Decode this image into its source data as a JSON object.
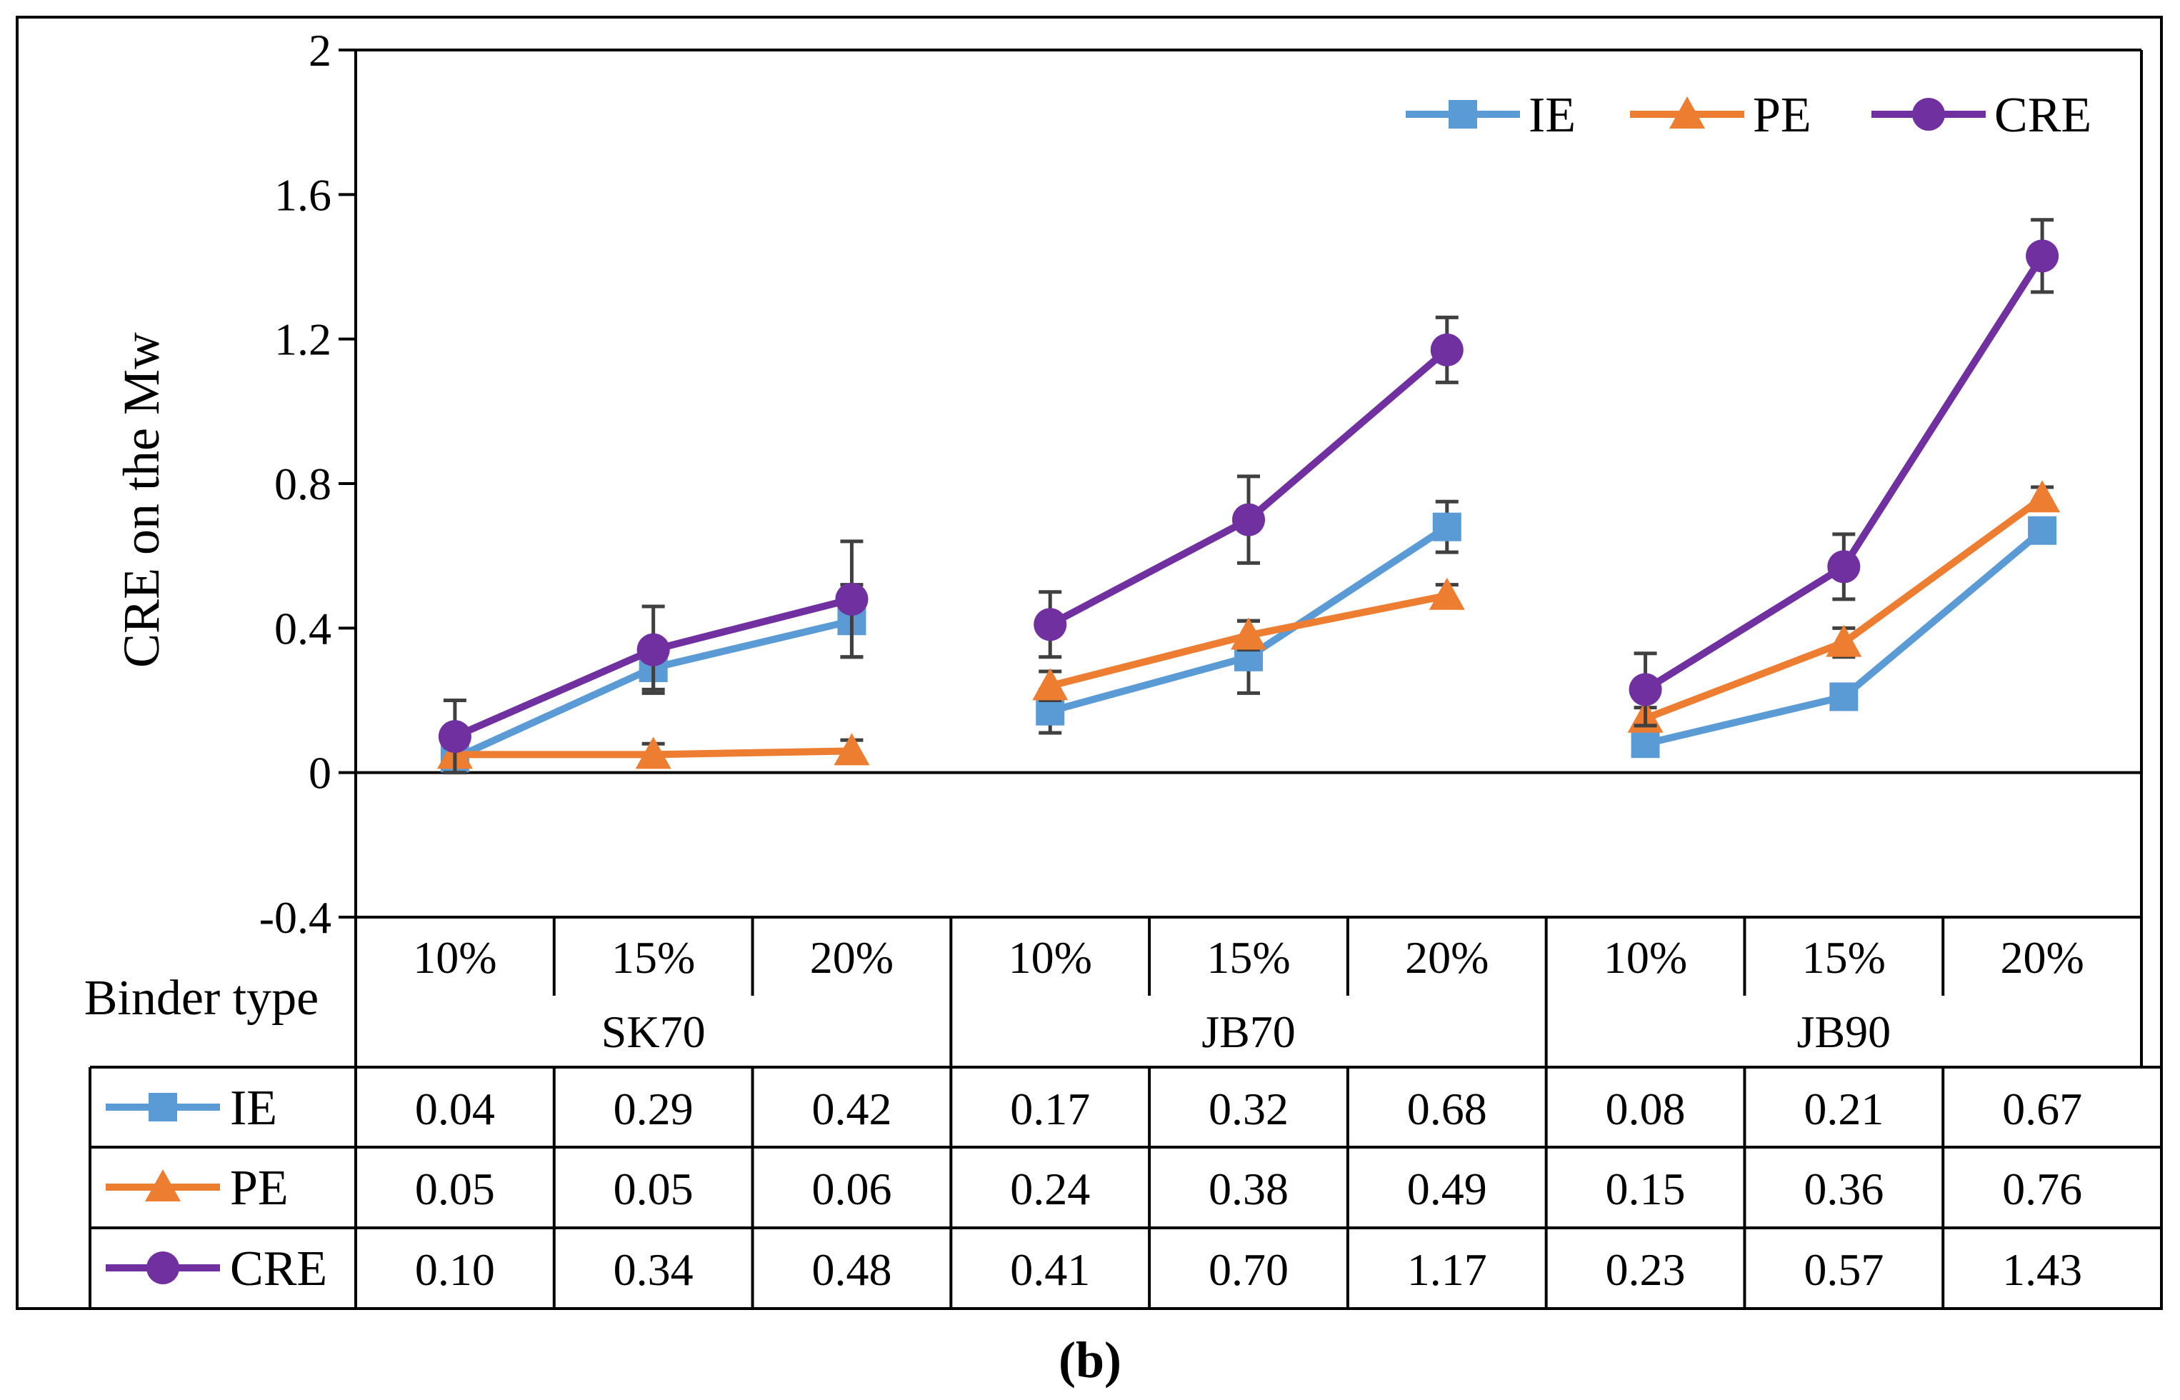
{
  "chart_data": {
    "type": "line",
    "ylabel": "CRE on the Mw",
    "ylim": [
      -0.4,
      2
    ],
    "yticks": [
      "-0.4",
      "0",
      "0.4",
      "0.8",
      "1.2",
      "1.6",
      "2"
    ],
    "ytick_values": [
      -0.4,
      0,
      0.4,
      0.8,
      1.2,
      1.6,
      2
    ],
    "table_header_label": "Binder type",
    "groups": [
      {
        "name": "SK70",
        "categories": [
          "10%",
          "15%",
          "20%"
        ]
      },
      {
        "name": "JB70",
        "categories": [
          "10%",
          "15%",
          "20%"
        ]
      },
      {
        "name": "JB90",
        "categories": [
          "10%",
          "15%",
          "20%"
        ]
      }
    ],
    "series": [
      {
        "name": "IE",
        "color": "#5B9BD5",
        "marker": "square",
        "values": [
          0.04,
          0.29,
          0.42,
          0.17,
          0.32,
          0.68,
          0.08,
          0.21,
          0.67
        ],
        "labels": [
          "0.04",
          "0.29",
          "0.42",
          "0.17",
          "0.32",
          "0.68",
          "0.08",
          "0.21",
          "0.67"
        ],
        "errors": [
          0.02,
          0.06,
          0.1,
          0.06,
          0.1,
          0.07,
          0.02,
          0.02,
          0.02
        ]
      },
      {
        "name": "PE",
        "color": "#ED7D31",
        "marker": "triangle",
        "values": [
          0.05,
          0.05,
          0.06,
          0.24,
          0.38,
          0.49,
          0.15,
          0.36,
          0.76
        ],
        "labels": [
          "0.05",
          "0.05",
          "0.06",
          "0.24",
          "0.38",
          "0.49",
          "0.15",
          "0.36",
          "0.76"
        ],
        "errors": [
          0.02,
          0.03,
          0.03,
          0.04,
          0.04,
          0.03,
          0.03,
          0.04,
          0.03
        ]
      },
      {
        "name": "CRE",
        "color": "#7030A0",
        "marker": "circle",
        "values": [
          0.1,
          0.34,
          0.48,
          0.41,
          0.7,
          1.17,
          0.23,
          0.57,
          1.43
        ],
        "labels": [
          "0.10",
          "0.34",
          "0.48",
          "0.41",
          "0.70",
          "1.17",
          "0.23",
          "0.57",
          "1.43"
        ],
        "errors": [
          0.1,
          0.12,
          0.16,
          0.09,
          0.12,
          0.09,
          0.1,
          0.09,
          0.1
        ]
      }
    ],
    "legend": "top-right",
    "caption": "(b)",
    "errorbar_color": "#404040"
  }
}
